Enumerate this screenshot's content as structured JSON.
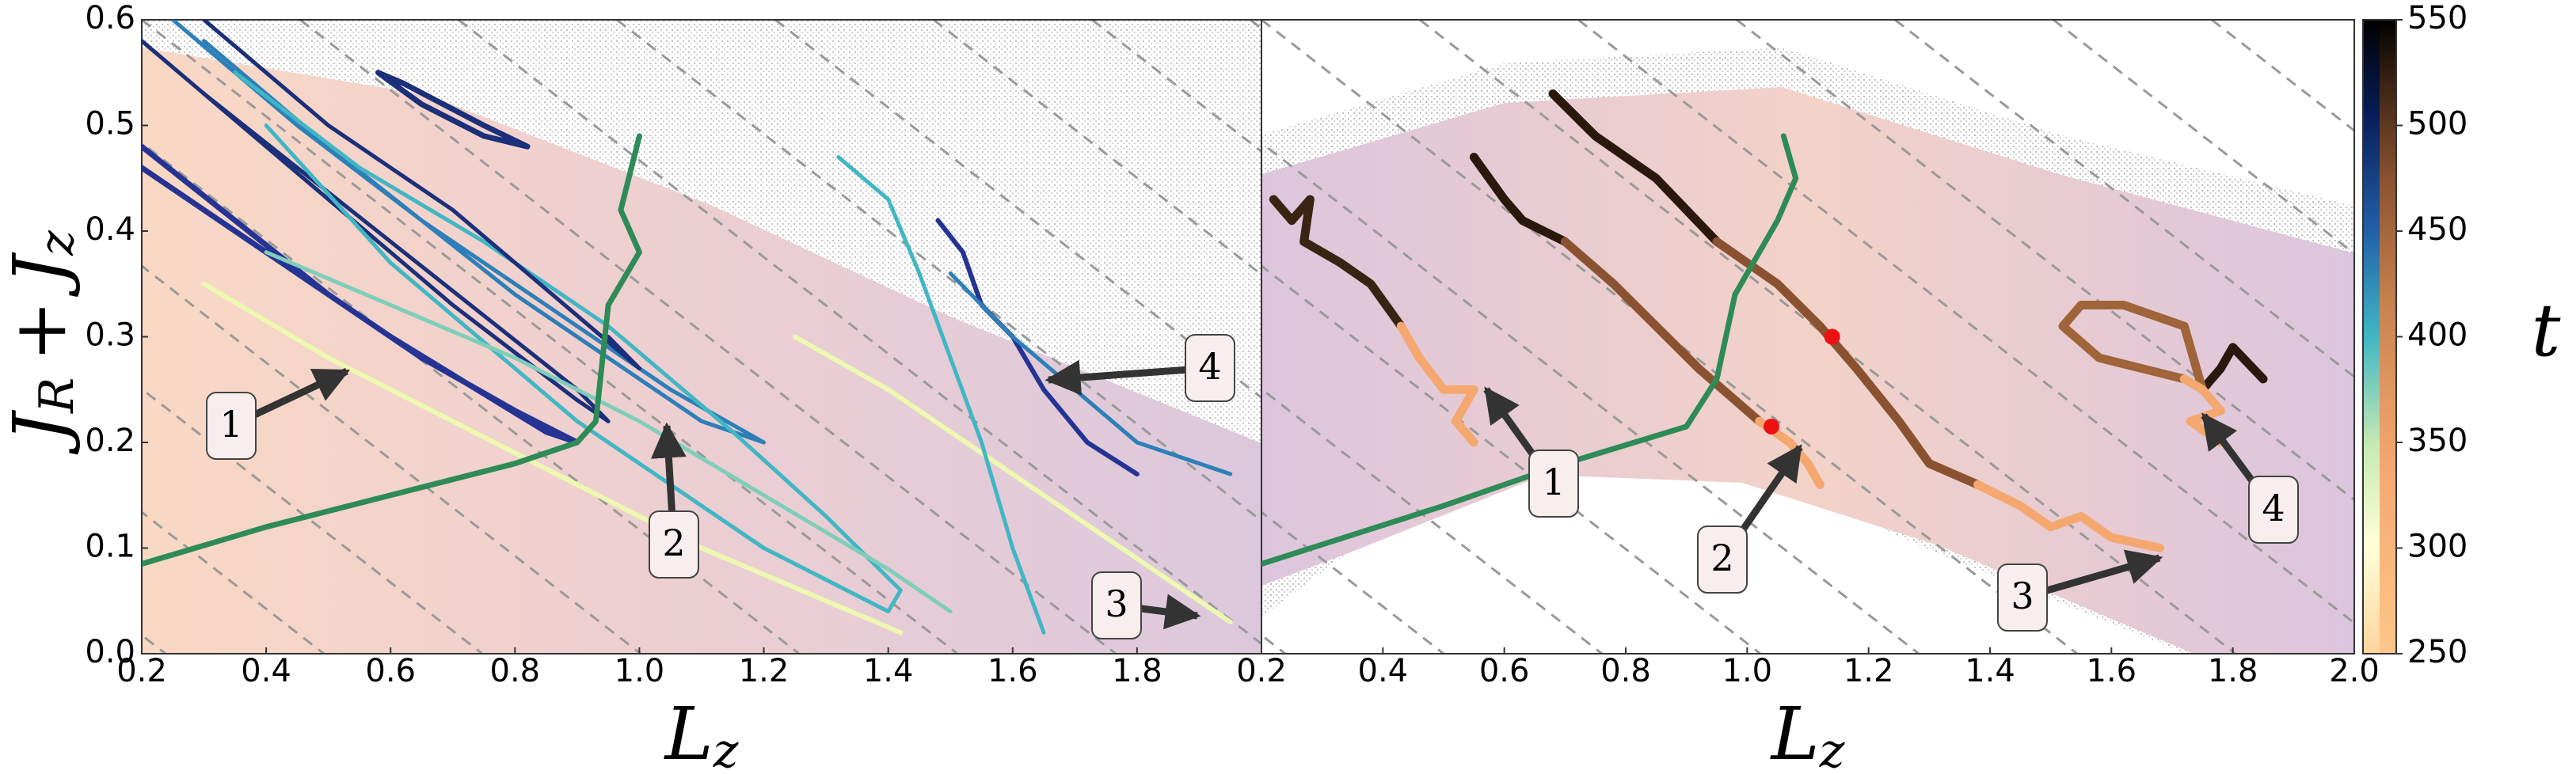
{
  "chart_data": [
    {
      "type": "line",
      "xlabel": [
        "L",
        "z"
      ],
      "ylabel": [
        "J",
        "R",
        "+",
        "J",
        "z"
      ],
      "xlim": [
        0.2,
        2.0
      ],
      "xticks": [
        0.2,
        0.4,
        0.6,
        0.8,
        {
          "value": 1.0,
          "label": "1.0"
        },
        1.2,
        1.4,
        1.6,
        1.8
      ],
      "ylim": [
        0,
        0.6
      ],
      "yticks": [
        {
          "value": 0,
          "label": "0.0"
        },
        0.1,
        0.2,
        0.3,
        0.4,
        0.5,
        0.6
      ],
      "annotations": [
        "1",
        "2",
        "3",
        "4"
      ],
      "series": [
        {
          "color": "#1b2f7a",
          "width": 5,
          "x": [
            0.2,
            0.3,
            0.45,
            0.6,
            0.75,
            0.9,
            0.95,
            0.9,
            0.7,
            0.5,
            0.3,
            0.2
          ],
          "y": [
            0.58,
            0.53,
            0.46,
            0.39,
            0.32,
            0.25,
            0.22,
            0.24,
            0.33,
            0.43,
            0.53,
            0.58
          ]
        },
        {
          "color": "#253494",
          "width": 7,
          "x": [
            0.2,
            0.35,
            0.5,
            0.65,
            0.8,
            0.9,
            0.85,
            0.6,
            0.4,
            0.2
          ],
          "y": [
            0.48,
            0.41,
            0.34,
            0.28,
            0.23,
            0.2,
            0.21,
            0.3,
            0.38,
            0.46
          ]
        },
        {
          "color": "#2c7fb8",
          "width": 5,
          "x": [
            0.25,
            0.45,
            0.65,
            0.85,
            1.05,
            1.2,
            1.1,
            0.8,
            0.5,
            0.3
          ],
          "y": [
            0.6,
            0.5,
            0.41,
            0.33,
            0.25,
            0.2,
            0.22,
            0.34,
            0.48,
            0.58
          ]
        },
        {
          "color": "#41b6c4",
          "width": 5,
          "x": [
            0.35,
            0.55,
            0.75,
            0.95,
            1.15,
            1.3,
            1.42,
            1.4,
            1.2,
            0.9,
            0.6,
            0.4
          ],
          "y": [
            0.55,
            0.46,
            0.39,
            0.31,
            0.21,
            0.13,
            0.06,
            0.04,
            0.1,
            0.22,
            0.37,
            0.5
          ]
        },
        {
          "color": "#7fcdbb",
          "width": 5,
          "x": [
            0.4,
            0.6,
            0.8,
            1.0,
            1.2,
            1.4,
            1.5
          ],
          "y": [
            0.38,
            0.33,
            0.28,
            0.22,
            0.15,
            0.08,
            0.04
          ]
        },
        {
          "color": "#edf8b1",
          "width": 6,
          "x": [
            0.3,
            0.5,
            0.7,
            0.9,
            1.1,
            1.3,
            1.42
          ],
          "y": [
            0.35,
            0.28,
            0.22,
            0.16,
            0.1,
            0.05,
            0.02
          ]
        },
        {
          "color": "#edf8b1",
          "width": 6,
          "x": [
            1.25,
            1.4,
            1.55,
            1.7,
            1.85,
            1.95
          ],
          "y": [
            0.3,
            0.25,
            0.19,
            0.13,
            0.07,
            0.03
          ]
        },
        {
          "color": "#41b6c4",
          "width": 5,
          "x": [
            1.32,
            1.4,
            1.45,
            1.5,
            1.55,
            1.6,
            1.65
          ],
          "y": [
            0.47,
            0.43,
            0.36,
            0.28,
            0.2,
            0.1,
            0.02
          ]
        },
        {
          "color": "#253494",
          "width": 6,
          "x": [
            1.48,
            1.52,
            1.55,
            1.6,
            1.65,
            1.72,
            1.8
          ],
          "y": [
            0.41,
            0.38,
            0.33,
            0.3,
            0.25,
            0.2,
            0.17
          ]
        },
        {
          "color": "#2c7fb8",
          "width": 5,
          "x": [
            1.5,
            1.6,
            1.7,
            1.8,
            1.95
          ],
          "y": [
            0.36,
            0.3,
            0.25,
            0.2,
            0.17
          ]
        },
        {
          "color": "#1b2f7a",
          "width": 7,
          "x": [
            0.58,
            0.65,
            0.75,
            0.82,
            0.75,
            0.62,
            0.58
          ],
          "y": [
            0.55,
            0.52,
            0.49,
            0.48,
            0.5,
            0.54,
            0.55
          ]
        },
        {
          "color": "#1b2f7a",
          "width": 5,
          "x": [
            0.3,
            0.5,
            0.7,
            0.9,
            1.0,
            0.95
          ],
          "y": [
            0.6,
            0.5,
            0.42,
            0.32,
            0.27,
            0.3
          ]
        },
        {
          "color": "#2e8b57",
          "width": 7,
          "x": [
            0.2,
            0.4,
            0.6,
            0.8,
            0.9,
            0.93,
            0.95,
            1.0,
            0.97,
            1.0
          ],
          "y": [
            0.085,
            0.12,
            0.15,
            0.18,
            0.2,
            0.22,
            0.33,
            0.38,
            0.42,
            0.49
          ]
        }
      ]
    },
    {
      "type": "line",
      "xlim": [
        0.2,
        2.0
      ],
      "xticks": [
        0.2,
        0.4,
        0.6,
        0.8,
        {
          "value": 1.0,
          "label": "1.0"
        },
        1.2,
        1.4,
        1.6,
        1.8,
        {
          "value": 2.0,
          "label": "2.0"
        }
      ],
      "ylim": [
        0,
        0.6
      ],
      "annotations": [
        "1",
        "2",
        "3",
        "4"
      ],
      "series": [
        {
          "color": "#3b2314",
          "width": 11,
          "x": [
            0.22,
            0.25,
            0.28,
            0.27,
            0.33,
            0.38,
            0.43
          ],
          "y": [
            0.43,
            0.41,
            0.43,
            0.39,
            0.37,
            0.35,
            0.31
          ]
        },
        {
          "color": "#f4a870",
          "width": 11,
          "x": [
            0.43,
            0.46,
            0.5,
            0.55,
            0.52,
            0.55
          ],
          "y": [
            0.31,
            0.28,
            0.25,
            0.25,
            0.22,
            0.2
          ]
        },
        {
          "color": "#2a180d",
          "width": 11,
          "x": [
            0.55,
            0.6,
            0.63,
            0.7
          ],
          "y": [
            0.47,
            0.43,
            0.41,
            0.39
          ]
        },
        {
          "color": "#8a5230",
          "width": 11,
          "x": [
            0.7,
            0.78,
            0.85,
            0.92,
            0.98,
            1.02
          ],
          "y": [
            0.39,
            0.35,
            0.31,
            0.27,
            0.24,
            0.22
          ]
        },
        {
          "color": "#f4a870",
          "width": 11,
          "x": [
            1.02,
            1.07,
            1.1,
            1.12
          ],
          "y": [
            0.22,
            0.2,
            0.18,
            0.16
          ]
        },
        {
          "color": "#2a180d",
          "width": 11,
          "x": [
            0.68,
            0.75,
            0.85,
            0.95
          ],
          "y": [
            0.53,
            0.49,
            0.45,
            0.39
          ]
        },
        {
          "color": "#8a5230",
          "width": 11,
          "x": [
            0.95,
            1.05,
            1.12,
            1.18,
            1.25,
            1.3,
            1.38
          ],
          "y": [
            0.39,
            0.35,
            0.31,
            0.27,
            0.22,
            0.18,
            0.16
          ]
        },
        {
          "color": "#f4a870",
          "width": 11,
          "x": [
            1.38,
            1.45,
            1.5,
            1.55,
            1.6,
            1.68
          ],
          "y": [
            0.16,
            0.14,
            0.12,
            0.13,
            0.11,
            0.1
          ]
        },
        {
          "color": "#2a180d",
          "width": 11,
          "x": [
            1.85,
            1.8,
            1.78,
            1.75
          ],
          "y": [
            0.26,
            0.29,
            0.27,
            0.25
          ]
        },
        {
          "color": "#a0643a",
          "width": 11,
          "x": [
            1.75,
            1.72,
            1.62,
            1.55,
            1.52,
            1.58,
            1.65,
            1.72
          ],
          "y": [
            0.25,
            0.31,
            0.33,
            0.33,
            0.31,
            0.28,
            0.27,
            0.26
          ]
        },
        {
          "color": "#f4a870",
          "width": 11,
          "x": [
            1.72,
            1.75,
            1.78,
            1.73,
            1.78
          ],
          "y": [
            0.26,
            0.25,
            0.23,
            0.22,
            0.2
          ]
        },
        {
          "color": "#2e8b57",
          "width": 7,
          "x": [
            0.2,
            0.5,
            0.7,
            0.9,
            0.95,
            0.98,
            1.02,
            1.05,
            1.08,
            1.06
          ],
          "y": [
            0.085,
            0.14,
            0.18,
            0.215,
            0.26,
            0.34,
            0.38,
            0.41,
            0.45,
            0.49
          ]
        }
      ],
      "points": {
        "color": "#ee1111",
        "x": [
          1.14,
          1.04
        ],
        "y": [
          0.3,
          0.215
        ]
      },
      "colorbar": {
        "label": "t",
        "lim": [
          250,
          550
        ],
        "ticks": [
          250,
          300,
          350,
          400,
          450,
          500,
          550
        ]
      }
    }
  ]
}
